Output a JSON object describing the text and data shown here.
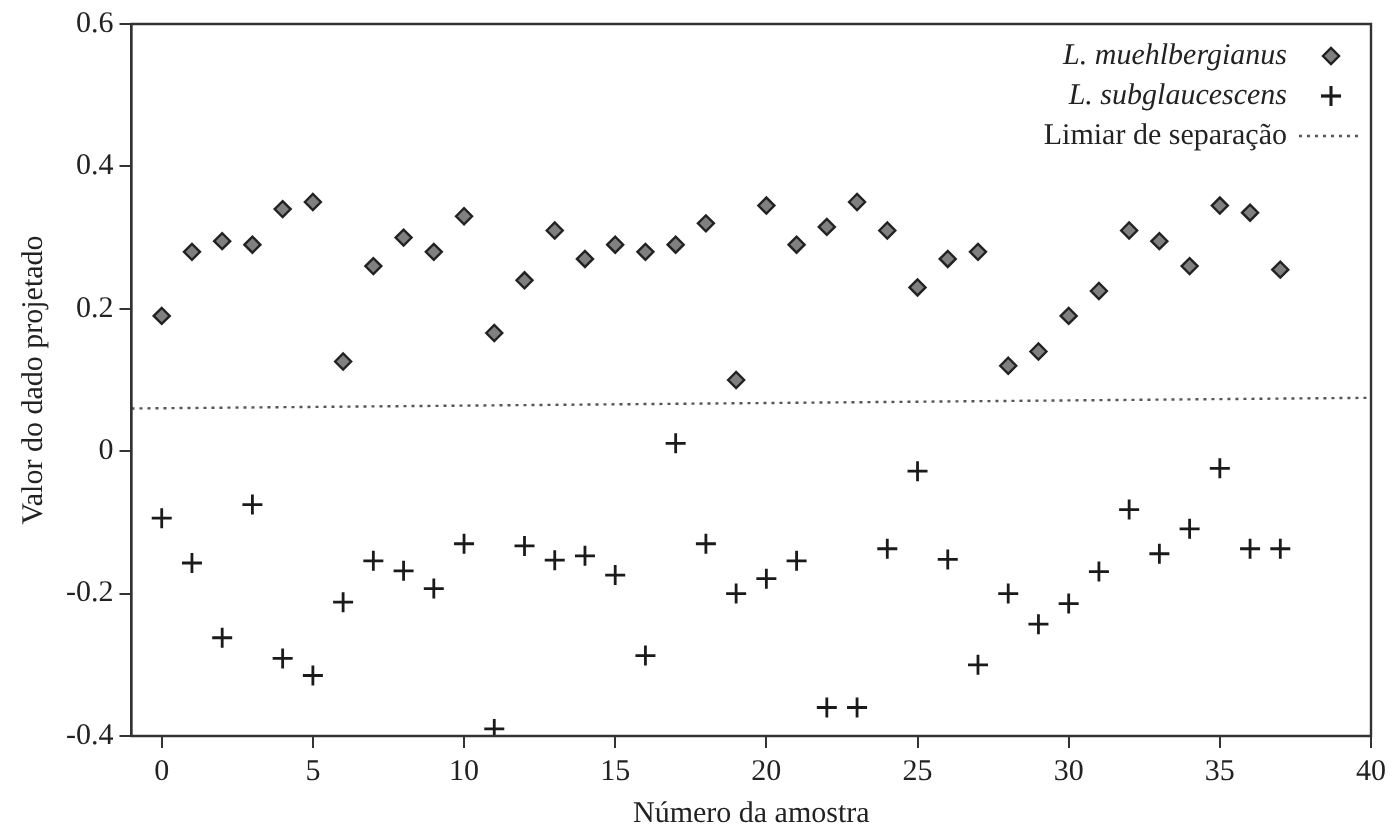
{
  "chart_data": {
    "type": "scatter",
    "xlabel": "Número da amostra",
    "ylabel": "Valor do dado projetado",
    "x": [
      0,
      1,
      2,
      3,
      4,
      5,
      6,
      7,
      8,
      9,
      10,
      11,
      12,
      13,
      14,
      15,
      16,
      17,
      18,
      19,
      20,
      21,
      22,
      23,
      24,
      25,
      26,
      27,
      28,
      29,
      30,
      31,
      32,
      33,
      34,
      35,
      36,
      37
    ],
    "xlim": [
      -1,
      40
    ],
    "xticks": [
      0,
      5,
      10,
      15,
      20,
      25,
      30,
      35,
      40
    ],
    "ylim": [
      -0.4,
      0.6
    ],
    "yticks": [
      -0.4,
      -0.2,
      0,
      0.2,
      0.4,
      0.6
    ],
    "grid": false,
    "legend": "top right",
    "series": [
      {
        "name": "L. muehlbergianus",
        "type": "scatter",
        "marker": "diamond",
        "color": "#808080",
        "values": [
          0.19,
          0.28,
          0.295,
          0.29,
          0.34,
          0.35,
          0.126,
          0.26,
          0.3,
          0.28,
          0.33,
          0.166,
          0.24,
          0.31,
          0.27,
          0.29,
          0.28,
          0.29,
          0.32,
          0.1,
          0.345,
          0.29,
          0.315,
          0.35,
          0.31,
          0.23,
          0.27,
          0.28,
          0.12,
          0.14,
          0.19,
          0.225,
          0.31,
          0.295,
          0.26,
          0.345,
          0.335,
          0.255
        ]
      },
      {
        "name": "L. subglaucescens",
        "type": "scatter",
        "marker": "cross",
        "color": "#1a1a1a",
        "values": [
          -0.094,
          -0.157,
          -0.262,
          -0.075,
          -0.291,
          -0.315,
          -0.212,
          -0.154,
          -0.168,
          -0.193,
          -0.13,
          -0.39,
          -0.133,
          -0.153,
          -0.147,
          -0.174,
          -0.287,
          0.011,
          -0.13,
          -0.2,
          -0.179,
          -0.154,
          -0.36,
          -0.36,
          -0.137,
          -0.028,
          -0.152,
          -0.3,
          -0.2,
          -0.243,
          -0.214,
          -0.169,
          -0.082,
          -0.144,
          -0.109,
          -0.024,
          -0.137,
          -0.137
        ]
      },
      {
        "name": "Limiar de separação",
        "type": "line",
        "marker": "none",
        "line_style": "dotted",
        "color": "#555555",
        "x": [
          -1,
          40
        ],
        "values": [
          0.06,
          0.075
        ]
      }
    ]
  }
}
